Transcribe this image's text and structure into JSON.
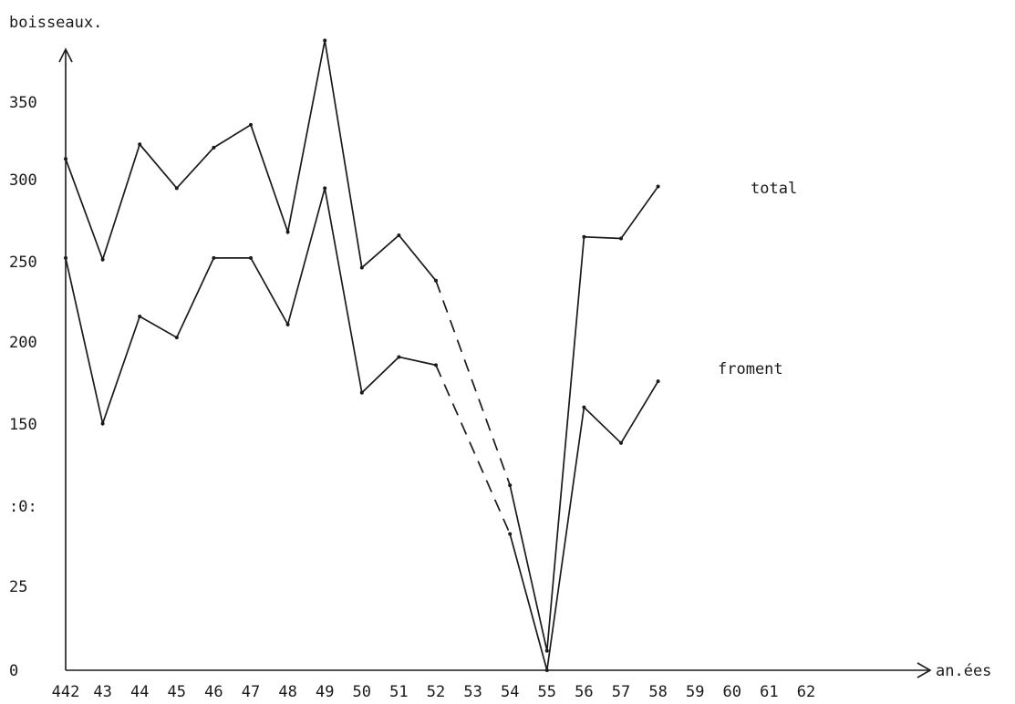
{
  "chart_data": {
    "type": "line",
    "ylabel": "boisseaux.",
    "xlabel": "an.ées",
    "x_tick_labels": [
      "442",
      "43",
      "44",
      "45",
      "46",
      "47",
      "48",
      "49",
      "50",
      "51",
      "52",
      "53",
      "54",
      "55",
      "56",
      "57",
      "58",
      "59",
      "60",
      "61",
      "62"
    ],
    "y_tick_labels": [
      "0",
      "25",
      ":0:",
      "150",
      "200",
      "250",
      "300",
      "350"
    ],
    "series": [
      {
        "name": "total",
        "values": [
          315,
          253,
          324,
          297,
          322,
          336,
          270,
          388,
          248,
          268,
          240,
          null,
          114,
          12,
          267,
          266,
          298,
          null,
          null,
          null,
          null
        ],
        "dashed_between": [
          [
            10,
            12
          ]
        ]
      },
      {
        "name": "froment",
        "values": [
          254,
          152,
          218,
          205,
          254,
          254,
          213,
          297,
          171,
          193,
          188,
          null,
          84,
          0,
          162,
          140,
          178,
          null,
          null,
          null,
          null
        ],
        "dashed_between": [
          [
            10,
            12
          ]
        ]
      }
    ],
    "legend": "inline labels at line ends",
    "grid": false
  }
}
